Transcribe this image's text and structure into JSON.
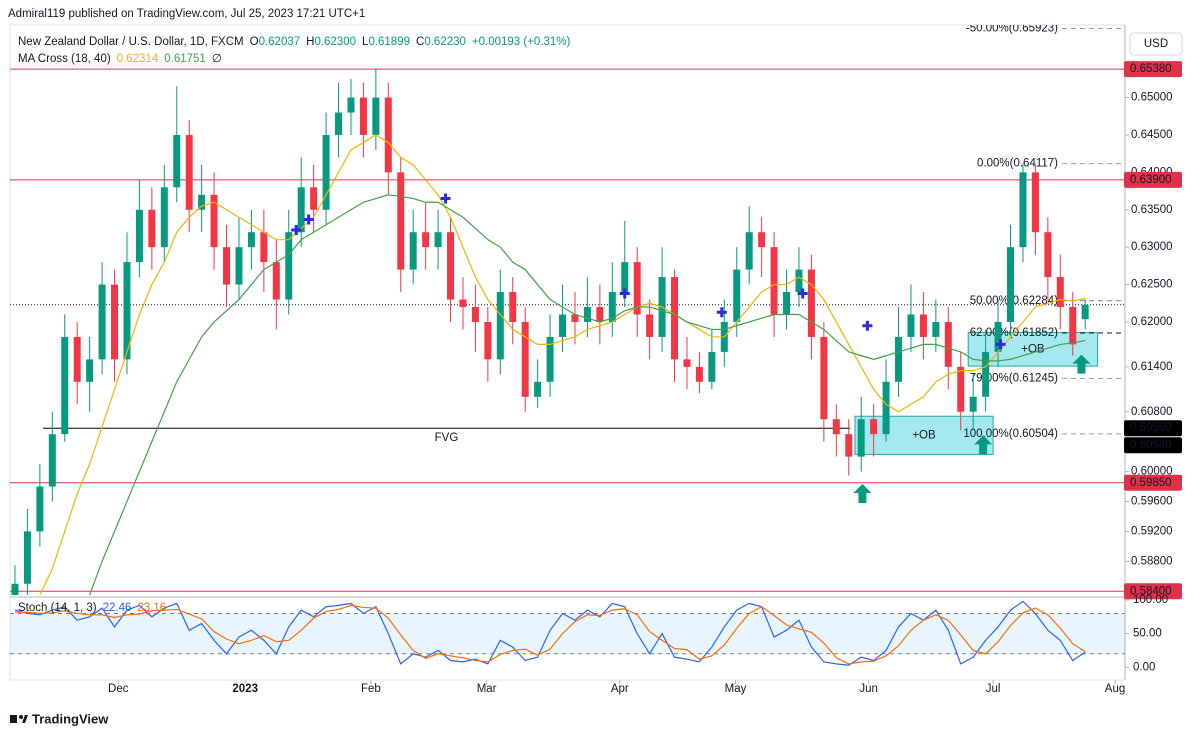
{
  "publisher": "Admiral119 published on TradingView.com, Jul 25, 2023 17:21 UTC+1",
  "currency_button": "USD",
  "brand": "TradingView",
  "chart_data": [
    {
      "type": "candlestick",
      "title": "New Zealand Dollar / U.S. Dollar, 1D, FXCM",
      "ohlc_legend": [
        {
          "key": "O",
          "value": "0.62037"
        },
        {
          "key": "H",
          "value": "0.62300"
        },
        {
          "key": "L",
          "value": "0.61899"
        },
        {
          "key": "C",
          "value": "0.62230"
        }
      ],
      "change": "+0.00193 (+0.31%)",
      "up_color": "#089981",
      "down_color": "#f23645",
      "categories": [
        null,
        null,
        null,
        null,
        null,
        null,
        null,
        null,
        null,
        null,
        null,
        null,
        null,
        null,
        null,
        null,
        null,
        null,
        null,
        null,
        null,
        null,
        null,
        null,
        null,
        null,
        null,
        null,
        null,
        null,
        null,
        null,
        null,
        null,
        null,
        null,
        null,
        null,
        null,
        null,
        null,
        null,
        null,
        null,
        null,
        null,
        null,
        null,
        null,
        null,
        null,
        null,
        null,
        null,
        null,
        null,
        null,
        null,
        null,
        null,
        null,
        null,
        null,
        null,
        null,
        null,
        null,
        null,
        null,
        null,
        null,
        null,
        null,
        null,
        null,
        null,
        null,
        null,
        null,
        null,
        null,
        null,
        null,
        null,
        null,
        null,
        null
      ],
      "open": [
        0.583,
        0.585,
        0.592,
        0.598,
        0.605,
        0.618,
        0.612,
        0.615,
        0.625,
        0.615,
        0.628,
        0.635,
        0.63,
        0.638,
        0.645,
        0.635,
        0.637,
        0.63,
        0.625,
        0.63,
        0.632,
        0.628,
        0.623,
        0.632,
        0.638,
        0.635,
        0.645,
        0.648,
        0.65,
        0.645,
        0.65,
        0.64,
        0.627,
        0.632,
        0.63,
        0.632,
        0.623,
        0.622,
        0.62,
        0.615,
        0.624,
        0.62,
        0.61,
        0.612,
        0.618,
        0.621,
        0.62,
        0.622,
        0.62,
        0.624,
        0.628,
        0.621,
        0.618,
        0.626,
        0.615,
        0.614,
        0.612,
        0.616,
        0.62,
        0.627,
        0.632,
        0.63,
        0.621,
        0.624,
        0.627,
        0.618,
        0.607,
        0.605,
        0.602,
        0.607,
        0.605,
        0.612,
        0.618,
        0.621,
        0.618,
        0.62,
        0.614,
        0.608,
        0.61,
        0.616,
        0.62,
        0.63,
        0.64,
        0.632,
        0.626,
        0.622,
        0.62037
      ],
      "high": [
        0.5875,
        0.595,
        0.601,
        0.608,
        0.621,
        0.62,
        0.618,
        0.628,
        0.627,
        0.632,
        0.639,
        0.638,
        0.641,
        0.6515,
        0.647,
        0.641,
        0.64,
        0.633,
        0.634,
        0.635,
        0.635,
        0.631,
        0.635,
        0.642,
        0.641,
        0.648,
        0.652,
        0.6525,
        0.652,
        0.6538,
        0.652,
        0.642,
        0.635,
        0.636,
        0.635,
        0.634,
        0.626,
        0.625,
        0.622,
        0.627,
        0.626,
        0.622,
        0.615,
        0.621,
        0.625,
        0.624,
        0.626,
        0.625,
        0.628,
        0.6335,
        0.63,
        0.623,
        0.63,
        0.627,
        0.618,
        0.616,
        0.619,
        0.623,
        0.63,
        0.6355,
        0.634,
        0.632,
        0.627,
        0.63,
        0.629,
        0.62,
        0.609,
        0.607,
        0.61,
        0.609,
        0.615,
        0.622,
        0.625,
        0.624,
        0.623,
        0.622,
        0.616,
        0.613,
        0.619,
        0.623,
        0.633,
        0.6412,
        0.641,
        0.634,
        0.629,
        0.624,
        0.623
      ],
      "low": [
        0.5815,
        0.583,
        0.59,
        0.596,
        0.604,
        0.609,
        0.608,
        0.613,
        0.612,
        0.613,
        0.626,
        0.627,
        0.628,
        0.636,
        0.632,
        0.632,
        0.627,
        0.622,
        0.623,
        0.627,
        0.624,
        0.619,
        0.621,
        0.63,
        0.632,
        0.633,
        0.642,
        0.645,
        0.642,
        0.643,
        0.637,
        0.624,
        0.625,
        0.627,
        0.627,
        0.62,
        0.619,
        0.616,
        0.612,
        0.613,
        0.617,
        0.608,
        0.6085,
        0.61,
        0.616,
        0.617,
        0.618,
        0.617,
        0.618,
        0.622,
        0.618,
        0.615,
        0.616,
        0.612,
        0.611,
        0.6105,
        0.611,
        0.614,
        0.618,
        0.625,
        0.626,
        0.618,
        0.619,
        0.622,
        0.615,
        0.604,
        0.602,
        0.5995,
        0.6,
        0.602,
        0.604,
        0.61,
        0.616,
        0.615,
        0.616,
        0.611,
        0.6055,
        0.6055,
        0.608,
        0.614,
        0.618,
        0.628,
        0.629,
        0.623,
        0.619,
        0.6155,
        0.61899
      ],
      "close": [
        0.585,
        0.592,
        0.598,
        0.605,
        0.618,
        0.612,
        0.615,
        0.625,
        0.615,
        0.628,
        0.635,
        0.63,
        0.638,
        0.645,
        0.635,
        0.637,
        0.63,
        0.625,
        0.63,
        0.632,
        0.628,
        0.623,
        0.632,
        0.638,
        0.635,
        0.645,
        0.648,
        0.65,
        0.645,
        0.65,
        0.64,
        0.627,
        0.632,
        0.63,
        0.632,
        0.623,
        0.622,
        0.62,
        0.615,
        0.624,
        0.62,
        0.61,
        0.612,
        0.618,
        0.621,
        0.62,
        0.622,
        0.62,
        0.624,
        0.628,
        0.621,
        0.618,
        0.626,
        0.615,
        0.614,
        0.612,
        0.616,
        0.62,
        0.627,
        0.632,
        0.63,
        0.621,
        0.624,
        0.627,
        0.618,
        0.607,
        0.605,
        0.602,
        0.607,
        0.605,
        0.612,
        0.618,
        0.621,
        0.618,
        0.62,
        0.614,
        0.608,
        0.61,
        0.616,
        0.62,
        0.63,
        0.64,
        0.632,
        0.626,
        0.622,
        0.617,
        0.6223
      ],
      "ma_cross": {
        "title": "MA Cross (18, 40)",
        "symbol": "∅",
        "series": [
          {
            "color": "#f5b400",
            "last_label": "0.62314",
            "values": [
              null,
              null,
              0.5835,
              0.587,
              0.592,
              0.597,
              0.601,
              0.606,
              0.611,
              0.616,
              0.621,
              0.625,
              0.628,
              0.632,
              0.634,
              0.6355,
              0.636,
              0.635,
              0.634,
              0.633,
              0.632,
              0.631,
              0.631,
              0.6325,
              0.634,
              0.637,
              0.64,
              0.643,
              0.644,
              0.645,
              0.644,
              0.642,
              0.641,
              0.639,
              0.637,
              0.634,
              0.63,
              0.626,
              0.623,
              0.621,
              0.619,
              0.618,
              0.617,
              0.617,
              0.6175,
              0.618,
              0.619,
              0.6195,
              0.62,
              0.621,
              0.622,
              0.6225,
              0.622,
              0.621,
              0.62,
              0.619,
              0.618,
              0.618,
              0.62,
              0.622,
              0.624,
              0.625,
              0.625,
              0.626,
              0.625,
              0.623,
              0.62,
              0.617,
              0.614,
              0.611,
              0.609,
              0.608,
              0.609,
              0.61,
              0.612,
              0.613,
              0.6135,
              0.6135,
              0.614,
              0.616,
              0.618,
              0.62,
              0.622,
              0.6225,
              0.623,
              0.6228,
              0.62314
            ]
          },
          {
            "color": "#43a047",
            "last_label": "0.61751",
            "values": [
              null,
              null,
              null,
              null,
              null,
              null,
              0.5835,
              0.588,
              0.592,
              0.596,
              0.6,
              0.604,
              0.608,
              0.612,
              0.615,
              0.618,
              0.62,
              0.6215,
              0.623,
              0.625,
              0.627,
              0.628,
              0.629,
              0.631,
              0.632,
              0.633,
              0.634,
              0.635,
              0.636,
              0.6365,
              0.637,
              0.6368,
              0.6365,
              0.636,
              0.636,
              0.635,
              0.634,
              0.6325,
              0.631,
              0.63,
              0.628,
              0.627,
              0.625,
              0.623,
              0.622,
              0.621,
              0.6205,
              0.62,
              0.6205,
              0.6215,
              0.622,
              0.622,
              0.6215,
              0.621,
              0.62,
              0.6195,
              0.619,
              0.619,
              0.6195,
              0.62,
              0.6205,
              0.621,
              0.621,
              0.621,
              0.62,
              0.619,
              0.6175,
              0.616,
              0.6155,
              0.615,
              0.6155,
              0.616,
              0.6165,
              0.617,
              0.617,
              0.6165,
              0.616,
              0.615,
              0.6148,
              0.6148,
              0.615,
              0.6155,
              0.616,
              0.6165,
              0.617,
              0.6172,
              0.61751
            ]
          }
        ]
      },
      "cross_markers": [
        {
          "x": 22.6,
          "y": 0.6323
        },
        {
          "x": 23.6,
          "y": 0.6337
        },
        {
          "x": 34.6,
          "y": 0.6365
        },
        {
          "x": 49,
          "y": 0.6238
        },
        {
          "x": 56.8,
          "y": 0.6213
        },
        {
          "x": 63.3,
          "y": 0.6238
        },
        {
          "x": 68.5,
          "y": 0.6195
        },
        {
          "x": 79.2,
          "y": 0.617
        }
      ],
      "signal_arrows": [
        {
          "x": 68.1,
          "y": 0.5986,
          "color": "#089981"
        },
        {
          "x": 77.8,
          "y": 0.6051,
          "color": "#089981"
        },
        {
          "x": 85.7,
          "y": 0.6159,
          "color": "#089981"
        }
      ],
      "order_blocks": [
        {
          "label": "+OB",
          "x": [
            67.5,
            78.6
          ],
          "y": [
            0.6023,
            0.6074
          ]
        },
        {
          "label": "+OB",
          "x": [
            76.6,
            87
          ],
          "y": [
            0.6141,
            0.6186
          ]
        }
      ],
      "fvg": {
        "label": "FVG",
        "value": 0.6058,
        "x": [
          2.25,
          67.1
        ]
      },
      "levels": [
        {
          "value": 0.6538,
          "label": "0.65380",
          "color": "#e0314b"
        },
        {
          "value": 0.639,
          "label": "0.63900",
          "color": "#e0314b"
        },
        {
          "value": 0.5985,
          "label": "0.59850",
          "color": "#e0314b"
        },
        {
          "value": 0.584,
          "label": "0.58400",
          "color": "#e0314b"
        }
      ],
      "price_labels": [
        {
          "value": 0.6058,
          "label": "0.60580"
        },
        {
          "value": 0.6058,
          "label": "0.60580"
        }
      ],
      "last_price": 0.6223,
      "fib": [
        {
          "value": 0.65923,
          "label": "-50.00%(0.65923)",
          "color": "#9e9e9e"
        },
        {
          "value": 0.64117,
          "label": "0.00%(0.64117)",
          "color": "#9e9e9e"
        },
        {
          "value": 0.62284,
          "label": "50.00%(0.62284)",
          "color": "#787b86"
        },
        {
          "value": 0.61852,
          "label": "62.00%(0.61852)",
          "color": "#131722"
        },
        {
          "value": 0.61245,
          "label": "79.00%(0.61245)",
          "color": "#9e9e9e"
        },
        {
          "value": 0.60504,
          "label": "100.00%(0.60504)",
          "color": "#9e9e9e"
        }
      ],
      "xlim": [
        -0.4,
        89.2
      ],
      "xticks": [
        {
          "value": 8.3,
          "label": "Dec"
        },
        {
          "value": 18.5,
          "label": "2023"
        },
        {
          "value": 28.6,
          "label": "Feb"
        },
        {
          "value": 37.9,
          "label": "Mar"
        },
        {
          "value": 48.6,
          "label": "Apr"
        },
        {
          "value": 57.9,
          "label": "May"
        },
        {
          "value": 68.6,
          "label": "Jun"
        },
        {
          "value": 78.6,
          "label": "Jul"
        },
        {
          "value": 88.4,
          "label": "Aug"
        }
      ],
      "ylim": [
        0.5835,
        0.6597
      ],
      "yticks": [
        {
          "value": 0.65,
          "label": "0.65000"
        },
        {
          "value": 0.645,
          "label": "0.64500"
        },
        {
          "value": 0.64,
          "label": "0.64000"
        },
        {
          "value": 0.635,
          "label": "0.63500"
        },
        {
          "value": 0.63,
          "label": "0.63000"
        },
        {
          "value": 0.625,
          "label": "0.62500"
        },
        {
          "value": 0.62,
          "label": "0.62000"
        },
        {
          "value": 0.614,
          "label": "0.61400"
        },
        {
          "value": 0.608,
          "label": "0.60800"
        },
        {
          "value": 0.6,
          "label": "0.60000"
        },
        {
          "value": 0.596,
          "label": "0.59600"
        },
        {
          "value": 0.592,
          "label": "0.59200"
        },
        {
          "value": 0.588,
          "label": "0.58800"
        }
      ]
    },
    {
      "type": "line",
      "title": "Stoch (14, 1, 3)",
      "series": [
        {
          "color": "#2962ff",
          "last_label": "22.46",
          "values": [
            85,
            80,
            78,
            85,
            90,
            70,
            75,
            88,
            60,
            85,
            92,
            75,
            88,
            95,
            55,
            65,
            40,
            20,
            45,
            55,
            40,
            20,
            60,
            85,
            75,
            90,
            92,
            95,
            80,
            90,
            50,
            5,
            20,
            15,
            25,
            10,
            8,
            12,
            5,
            40,
            30,
            10,
            15,
            55,
            80,
            70,
            85,
            75,
            95,
            90,
            50,
            20,
            50,
            15,
            12,
            8,
            30,
            60,
            85,
            95,
            90,
            45,
            55,
            70,
            30,
            8,
            5,
            3,
            15,
            10,
            25,
            60,
            80,
            70,
            85,
            55,
            5,
            15,
            40,
            60,
            85,
            98,
            80,
            55,
            40,
            10,
            22.46
          ]
        },
        {
          "color": "#ff6d00",
          "last_label": "23.16",
          "values": [
            82,
            82,
            80,
            81,
            84,
            80,
            78,
            78,
            74,
            78,
            79,
            84,
            85,
            86,
            79,
            72,
            53,
            42,
            35,
            40,
            47,
            38,
            40,
            55,
            73,
            83,
            86,
            92,
            89,
            88,
            73,
            48,
            25,
            13,
            20,
            17,
            14,
            10,
            8,
            19,
            25,
            27,
            18,
            27,
            50,
            68,
            78,
            77,
            85,
            87,
            78,
            53,
            40,
            28,
            26,
            12,
            17,
            33,
            58,
            80,
            90,
            77,
            63,
            57,
            52,
            36,
            14,
            5,
            8,
            9,
            17,
            32,
            55,
            70,
            78,
            70,
            48,
            25,
            20,
            38,
            62,
            81,
            88,
            78,
            58,
            35,
            23.16
          ]
        }
      ],
      "band": [
        20,
        80
      ],
      "xlim": [
        -0.4,
        89.2
      ],
      "ylim": [
        -19,
        104.5
      ],
      "yticks": [
        {
          "value": 100,
          "label": "100.00"
        },
        {
          "value": 50,
          "label": "50.00"
        },
        {
          "value": 0,
          "label": "0.00"
        }
      ]
    }
  ]
}
